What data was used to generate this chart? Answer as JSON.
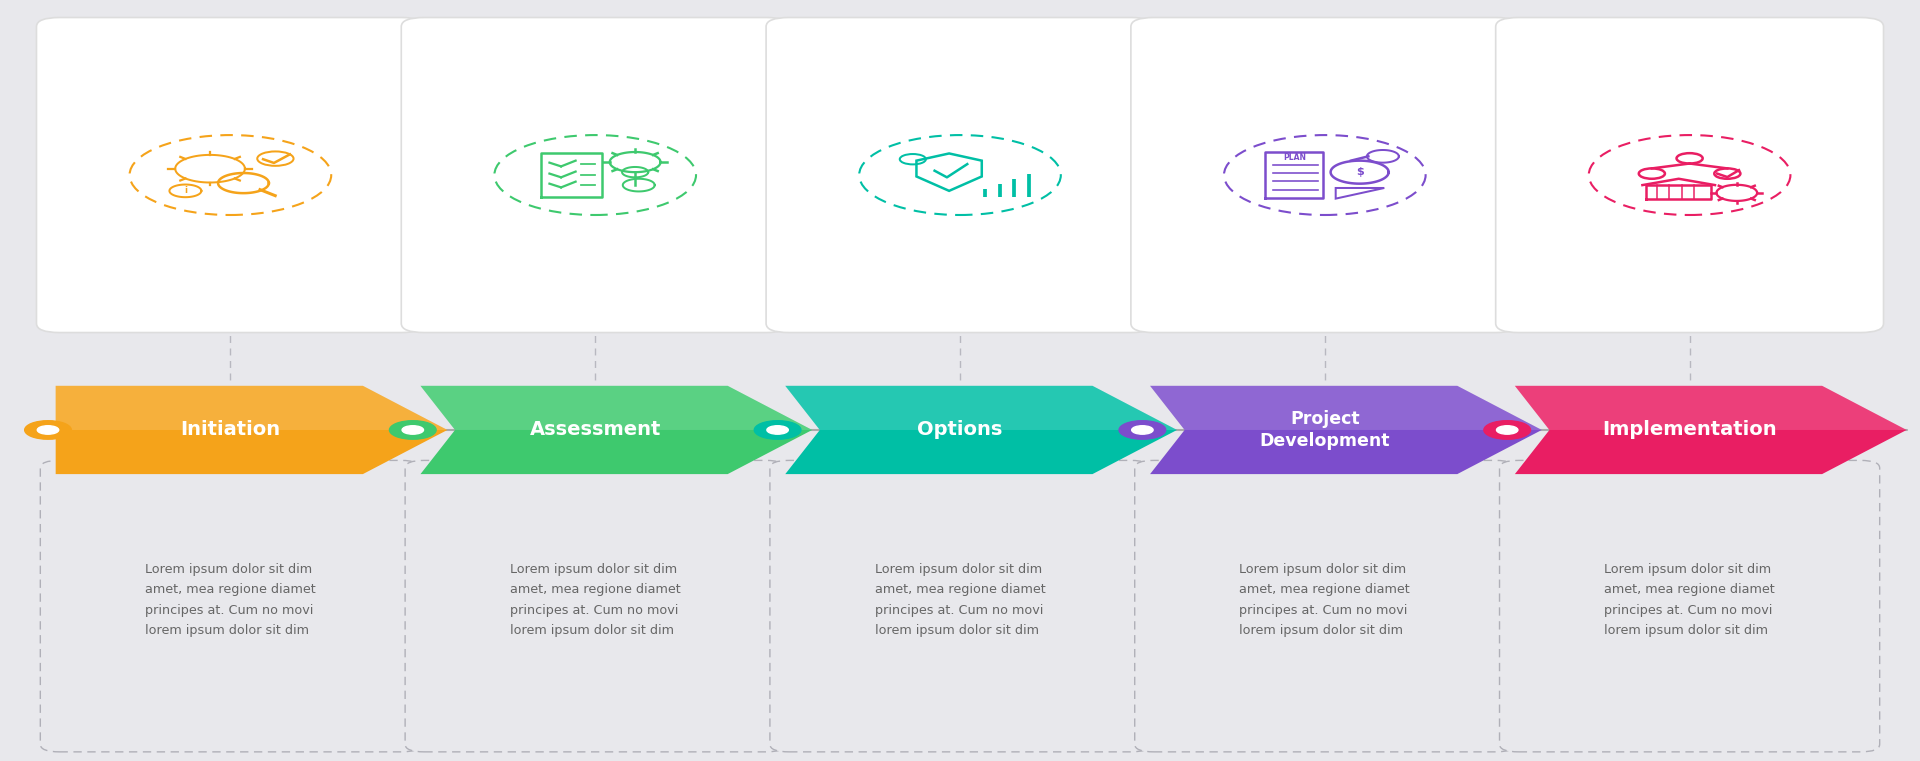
{
  "background_color": "#e8e8ec",
  "steps": [
    {
      "title": "Initiation",
      "two_line": false,
      "arrow_color": "#f5a31a",
      "dot_color": "#f5a31a",
      "icon_color": "#f5a31a",
      "text": "Lorem ipsum dolor sit dim\namet, mea regione diamet\nprincipes at. Cum no movi\nlorem ipsum dolor sit dim"
    },
    {
      "title": "Assessment",
      "two_line": false,
      "arrow_color": "#3ec96e",
      "dot_color": "#3ec96e",
      "icon_color": "#3ec96e",
      "text": "Lorem ipsum dolor sit dim\namet, mea regione diamet\nprincipes at. Cum no movi\nlorem ipsum dolor sit dim"
    },
    {
      "title": "Options",
      "two_line": false,
      "arrow_color": "#00bfa5",
      "dot_color": "#00bfa5",
      "icon_color": "#00bfa5",
      "text": "Lorem ipsum dolor sit dim\namet, mea regione diamet\nprincipes at. Cum no movi\nlorem ipsum dolor sit dim"
    },
    {
      "title": "Project\nDevelopment",
      "two_line": true,
      "arrow_color": "#7c4dcc",
      "dot_color": "#7c4dcc",
      "icon_color": "#7c4dcc",
      "text": "Lorem ipsum dolor sit dim\namet, mea regione diamet\nprincipes at. Cum no movi\nlorem ipsum dolor sit dim"
    },
    {
      "title": "Implementation",
      "two_line": false,
      "arrow_color": "#e91e63",
      "dot_color": "#e91e63",
      "icon_color": "#e91e63",
      "text": "Lorem ipsum dolor sit dim\namet, mea regione diamet\nprincipes at. Cum no movi\nlorem ipsum dolor sit dim"
    }
  ]
}
